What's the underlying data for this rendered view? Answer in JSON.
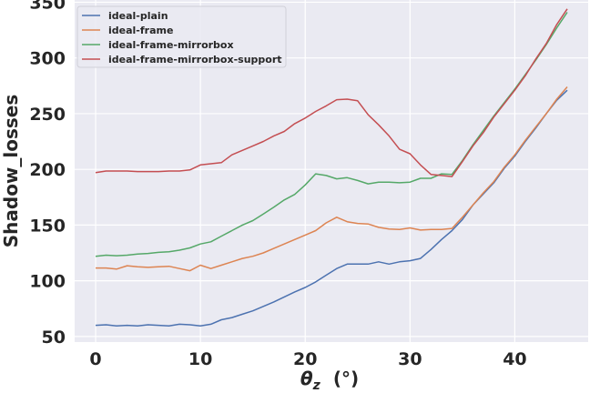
{
  "chart_data": {
    "type": "line",
    "xlabel_symbol": "θ",
    "xlabel_subscript": "z",
    "xlabel_unit": "(°)",
    "ylabel": "Shadow_losses",
    "xlim": [
      -2,
      47
    ],
    "ylim": [
      45,
      352
    ],
    "xticks": [
      0,
      10,
      20,
      30,
      40
    ],
    "yticks": [
      50,
      100,
      150,
      200,
      250,
      300,
      350
    ],
    "grid": true,
    "legend_position": "top-left",
    "x": [
      0,
      1,
      2,
      3,
      4,
      5,
      6,
      7,
      8,
      9,
      10,
      11,
      12,
      13,
      14,
      15,
      16,
      17,
      18,
      19,
      20,
      21,
      22,
      23,
      24,
      25,
      26,
      27,
      28,
      29,
      30,
      31,
      32,
      33,
      34,
      35,
      36,
      37,
      38,
      39,
      40,
      41,
      42,
      43,
      44,
      45
    ],
    "series": [
      {
        "name": "ideal-plain",
        "color": "#4c72b0",
        "values": [
          60,
          60.5,
          59.5,
          60,
          59.5,
          60.5,
          60,
          59.5,
          61,
          60.5,
          59.5,
          61,
          65,
          67,
          70,
          73,
          77,
          81,
          85.5,
          90,
          94,
          99,
          105,
          111,
          115,
          115,
          115,
          117,
          115,
          117,
          118,
          120,
          128,
          137,
          145,
          155,
          168,
          178,
          188,
          201,
          212,
          225,
          237,
          250,
          262,
          271
        ]
      },
      {
        "name": "ideal-frame",
        "color": "#dd8452",
        "values": [
          111.5,
          111.5,
          110.5,
          113.5,
          112.5,
          112,
          112.5,
          113,
          111,
          109,
          114,
          111,
          114,
          117,
          120,
          122,
          125,
          129,
          133,
          137,
          141,
          145,
          152,
          157,
          153,
          151.5,
          151,
          148,
          146.5,
          146,
          147.5,
          145.5,
          146,
          146,
          147,
          157,
          168,
          179,
          189,
          202,
          213,
          226,
          238,
          250,
          263,
          274
        ]
      },
      {
        "name": "ideal-frame-mirrorbox",
        "color": "#55a868",
        "values": [
          122,
          123,
          122.5,
          123,
          124,
          124.5,
          125.5,
          126,
          127.5,
          129.5,
          133,
          135,
          140,
          145,
          150,
          154,
          160,
          166,
          172.5,
          177.5,
          186,
          196,
          194.5,
          191.5,
          192.5,
          190,
          187,
          188.5,
          188.5,
          188,
          188.5,
          192,
          192,
          196,
          195.5,
          208,
          222,
          235,
          248,
          260,
          272,
          285,
          298,
          312,
          327,
          341
        ]
      },
      {
        "name": "ideal-frame-mirrorbox-support",
        "color": "#c44e52",
        "values": [
          197,
          198.5,
          198.5,
          198.5,
          198,
          198,
          198,
          198.5,
          198.5,
          199.5,
          204,
          205,
          206,
          213,
          217,
          221,
          225,
          230,
          234,
          241,
          246,
          252,
          257,
          262.5,
          263,
          261.5,
          249,
          240,
          230,
          218,
          214,
          204,
          195.5,
          194.5,
          193.5,
          207,
          221,
          233,
          247,
          259,
          271,
          284,
          299,
          313,
          330,
          344
        ]
      }
    ]
  }
}
